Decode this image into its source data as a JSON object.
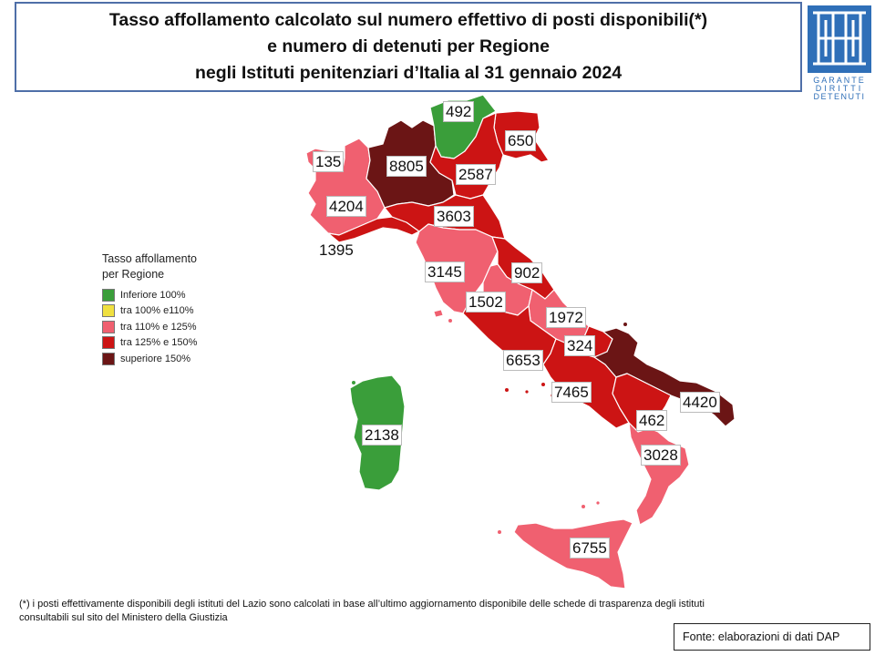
{
  "title": {
    "line1": "Tasso affollamento calcolato sul numero effettivo di posti disponibili(*)",
    "line2": "e numero di detenuti per Regione",
    "line3": "negli Istituti penitenziari d’Italia al 31 gennaio 2024"
  },
  "logo": {
    "line1": "GARANTE",
    "line2": "DIRITTI",
    "line3": "DETENUTI",
    "color": "#2f6fb8"
  },
  "legend": {
    "title_line1": "Tasso affollamento",
    "title_line2": "per Regione",
    "items": [
      {
        "label": "Inferiore 100%",
        "color": "#3a9e3a"
      },
      {
        "label": "tra 100% e110%",
        "color": "#f0e040"
      },
      {
        "label": "tra 110% e 125%",
        "color": "#f06070"
      },
      {
        "label": "tra 125% e 150%",
        "color": "#cc1414"
      },
      {
        "label": "superiore 150%",
        "color": "#6b1515"
      }
    ]
  },
  "regions": [
    {
      "id": "valle-d-aosta",
      "label": "135",
      "category": "tra 110% e 125%"
    },
    {
      "id": "piemonte",
      "label": "4204",
      "category": "tra 110% e 125%"
    },
    {
      "id": "liguria",
      "label": "1395",
      "category": "tra 125% e 150%"
    },
    {
      "id": "lombardia",
      "label": "8805",
      "category": "superiore 150%"
    },
    {
      "id": "trentino-alto-adige",
      "label": "492",
      "category": "Inferiore 100%"
    },
    {
      "id": "friuli-venezia-giulia",
      "label": "650",
      "category": "tra 125% e 150%"
    },
    {
      "id": "veneto",
      "label": "2587",
      "category": "tra 125% e 150%"
    },
    {
      "id": "emilia-romagna",
      "label": "3603",
      "category": "tra 125% e 150%"
    },
    {
      "id": "toscana",
      "label": "3145",
      "category": "tra 110% e 125%"
    },
    {
      "id": "marche",
      "label": "902",
      "category": "tra 125% e 150%"
    },
    {
      "id": "umbria",
      "label": "1502",
      "category": "tra 110% e 125%"
    },
    {
      "id": "abruzzo",
      "label": "1972",
      "category": "tra 110% e 125%"
    },
    {
      "id": "molise",
      "label": "324",
      "category": "tra 125% e 150%"
    },
    {
      "id": "lazio",
      "label": "6653",
      "category": "tra 125% e 150%"
    },
    {
      "id": "campania",
      "label": "7465",
      "category": "tra 125% e 150%"
    },
    {
      "id": "puglia",
      "label": "4420",
      "category": "superiore 150%"
    },
    {
      "id": "basilicata",
      "label": "462",
      "category": "tra 125% e 150%"
    },
    {
      "id": "calabria",
      "label": "3028",
      "category": "tra 110% e 125%"
    },
    {
      "id": "sicilia",
      "label": "6755",
      "category": "tra 110% e 125%"
    },
    {
      "id": "sardegna",
      "label": "2138",
      "category": "Inferiore 100%"
    }
  ],
  "footnote": {
    "line1": "(*) i posti effettivamente disponibili  degli istituti del Lazio sono calcolati in base all’ultimo aggiornamento disponibile  delle schede di trasparenza degli istituti",
    "line2": "consultabili sul sito del Ministero della Giustizia"
  },
  "source": "Fonte: elaborazioni di dati DAP"
}
